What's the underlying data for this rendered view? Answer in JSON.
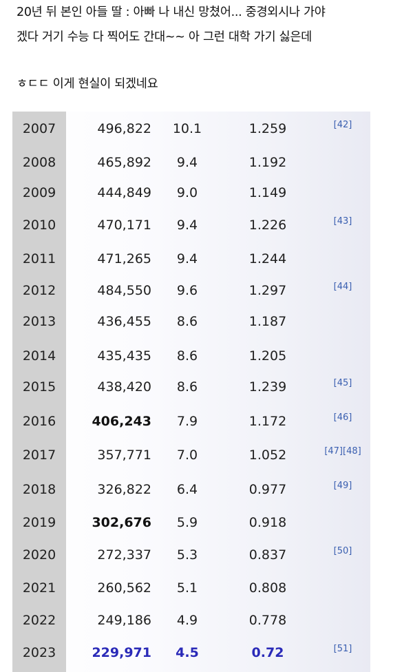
{
  "post": {
    "lines": [
      "20년 뒤 본인 아들 딸 : 아빠 나 내신 망쳤어... 중경외시나 가야",
      "겠다 거기 수능 다 찍어도 간대~~ 아 그런 대학 가기 싫은데",
      "ㅎㄷㄷ 이게 현실이 되겠네요"
    ]
  },
  "table": {
    "rows": [
      {
        "year": "2007",
        "births": "496,822",
        "rate": "10.1",
        "tfr": "1.259",
        "ref": "[42]",
        "emphasis": "none"
      },
      {
        "year": "2008",
        "births": "465,892",
        "rate": "9.4",
        "tfr": "1.192",
        "ref": "",
        "emphasis": "none"
      },
      {
        "year": "2009",
        "births": "444,849",
        "rate": "9.0",
        "tfr": "1.149",
        "ref": "",
        "emphasis": "none"
      },
      {
        "year": "2010",
        "births": "470,171",
        "rate": "9.4",
        "tfr": "1.226",
        "ref": "[43]",
        "emphasis": "none"
      },
      {
        "year": "2011",
        "births": "471,265",
        "rate": "9.4",
        "tfr": "1.244",
        "ref": "",
        "emphasis": "none"
      },
      {
        "year": "2012",
        "births": "484,550",
        "rate": "9.6",
        "tfr": "1.297",
        "ref": "[44]",
        "emphasis": "none"
      },
      {
        "year": "2013",
        "births": "436,455",
        "rate": "8.6",
        "tfr": "1.187",
        "ref": "",
        "emphasis": "none"
      },
      {
        "year": "2014",
        "births": "435,435",
        "rate": "8.6",
        "tfr": "1.205",
        "ref": "",
        "emphasis": "none"
      },
      {
        "year": "2015",
        "births": "438,420",
        "rate": "8.6",
        "tfr": "1.239",
        "ref": "[45]",
        "emphasis": "none"
      },
      {
        "year": "2016",
        "births": "406,243",
        "rate": "7.9",
        "tfr": "1.172",
        "ref": "[46]",
        "emphasis": "bold-births"
      },
      {
        "year": "2017",
        "births": "357,771",
        "rate": "7.0",
        "tfr": "1.052",
        "ref": "[47][48]",
        "emphasis": "none"
      },
      {
        "year": "2018",
        "births": "326,822",
        "rate": "6.4",
        "tfr": "0.977",
        "ref": "[49]",
        "emphasis": "none"
      },
      {
        "year": "2019",
        "births": "302,676",
        "rate": "5.9",
        "tfr": "0.918",
        "ref": "",
        "emphasis": "bold-births"
      },
      {
        "year": "2020",
        "births": "272,337",
        "rate": "5.3",
        "tfr": "0.837",
        "ref": "[50]",
        "emphasis": "none"
      },
      {
        "year": "2021",
        "births": "260,562",
        "rate": "5.1",
        "tfr": "0.808",
        "ref": "",
        "emphasis": "none"
      },
      {
        "year": "2022",
        "births": "249,186",
        "rate": "4.9",
        "tfr": "0.778",
        "ref": "",
        "emphasis": "none"
      },
      {
        "year": "2023",
        "births": "229,971",
        "rate": "4.5",
        "tfr": "0.72",
        "ref": "[51]",
        "emphasis": "highlight-all"
      }
    ]
  },
  "colors": {
    "year_column_bg": "#d1d1d1",
    "highlight_text": "#2a2ab8",
    "reference_link": "#3a5fb0"
  }
}
